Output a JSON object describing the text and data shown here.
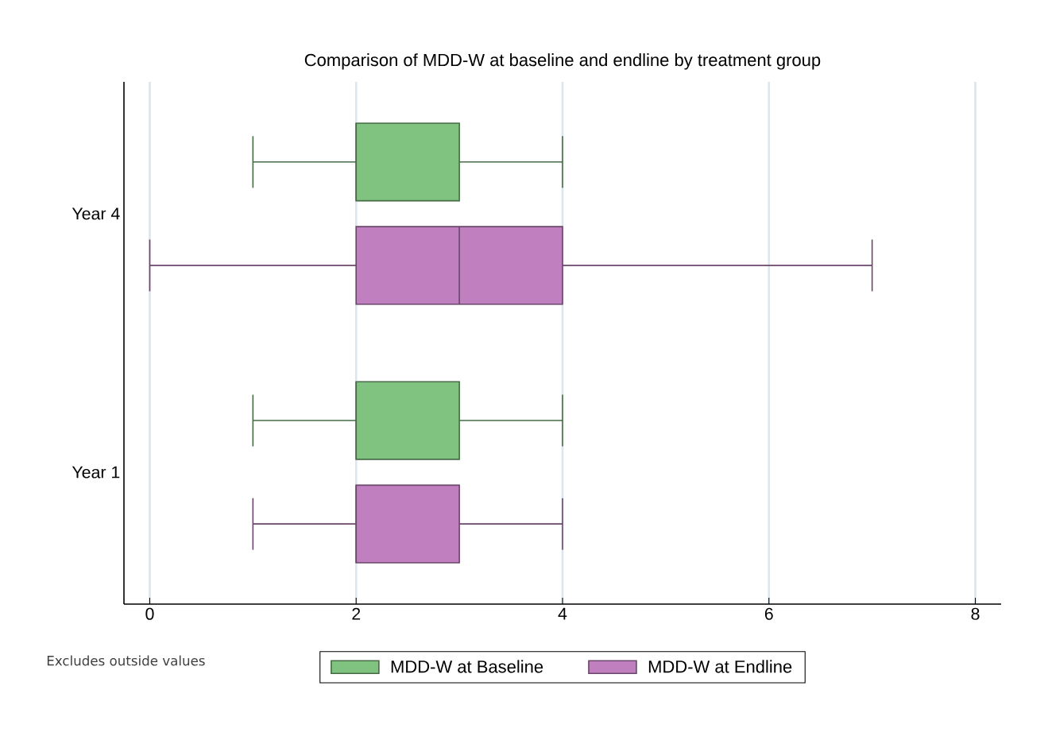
{
  "chart_data": {
    "type": "box",
    "title": "Comparison of MDD-W at baseline and endline by treatment group",
    "orientation": "horizontal",
    "categories": [
      "Year 4",
      "Year 1"
    ],
    "series": [
      {
        "name": "MDD-W at Baseline",
        "color": "#80c280",
        "boxes": [
          {
            "low": 1,
            "q1": 2,
            "median": 2,
            "q3": 3,
            "high": 4
          },
          {
            "low": 1,
            "q1": 2,
            "median": 2,
            "q3": 3,
            "high": 4
          }
        ]
      },
      {
        "name": "MDD-W at Endline",
        "color": "#c080c0",
        "boxes": [
          {
            "low": 0,
            "q1": 2,
            "median": 3,
            "q3": 4,
            "high": 7
          },
          {
            "low": 1,
            "q1": 2,
            "median": 2,
            "q3": 3,
            "high": 4
          }
        ]
      }
    ],
    "xlim": [
      -0.25,
      8.25
    ],
    "xticks": [
      0,
      2,
      4,
      6,
      8
    ],
    "grid": "x",
    "legend": "bottom",
    "annotations": [
      "Excludes outside values"
    ]
  }
}
